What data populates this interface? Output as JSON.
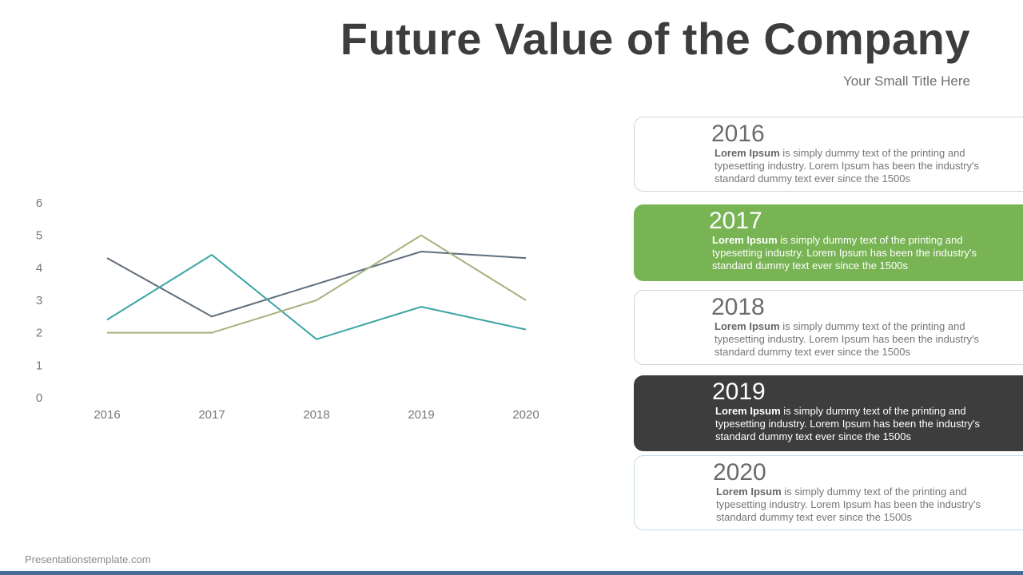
{
  "header": {
    "title": "Future Value of the Company",
    "subtitle": "Your Small Title Here"
  },
  "chart_data": {
    "type": "line",
    "categories": [
      "2016",
      "2017",
      "2018",
      "2019",
      "2020"
    ],
    "ylim": [
      0,
      6
    ],
    "yticks": [
      "0",
      "1",
      "2",
      "3",
      "4",
      "5",
      "6"
    ],
    "grid": false,
    "legend": "none",
    "series": [
      {
        "values": [
          4.3,
          2.5,
          3.5,
          4.5,
          4.3
        ],
        "color": "#5f6d7c"
      },
      {
        "values": [
          2.4,
          4.4,
          1.8,
          2.8,
          2.1
        ],
        "color": "#3aa5a3"
      },
      {
        "values": [
          2,
          2,
          3,
          5,
          3
        ],
        "color": "#a3b27c"
      }
    ]
  },
  "cards": [
    {
      "year": "2016",
      "bold": "Lorem Ipsum",
      "text": " is simply dummy text of the printing and typesetting industry. Lorem Ipsum has been the industry's standard dummy text ever since the 1500s"
    },
    {
      "year": "2017",
      "bold": "Lorem Ipsum",
      "text": " is simply dummy text of the printing and typesetting industry. Lorem Ipsum has been the industry's standard dummy text ever since the 1500s"
    },
    {
      "year": "2018",
      "bold": "Lorem Ipsum",
      "text": " is simply dummy text of the printing and typesetting industry. Lorem Ipsum has been the industry's standard dummy text ever since the 1500s"
    },
    {
      "year": "2019",
      "bold": "Lorem Ipsum",
      "text": " is simply dummy text of the printing and typesetting industry. Lorem Ipsum has been the industry's standard dummy text ever since the 1500s"
    },
    {
      "year": "2020",
      "bold": "Lorem Ipsum",
      "text": " is simply dummy text of the printing and typesetting industry. Lorem Ipsum has been the industry's standard dummy text ever since the 1500s"
    }
  ],
  "footer": {
    "text": "Presentationstemplate.com"
  },
  "colors": {
    "green": "#78b354",
    "dark": "#3d3d3d",
    "bottom_bar": "#4a6a97"
  }
}
